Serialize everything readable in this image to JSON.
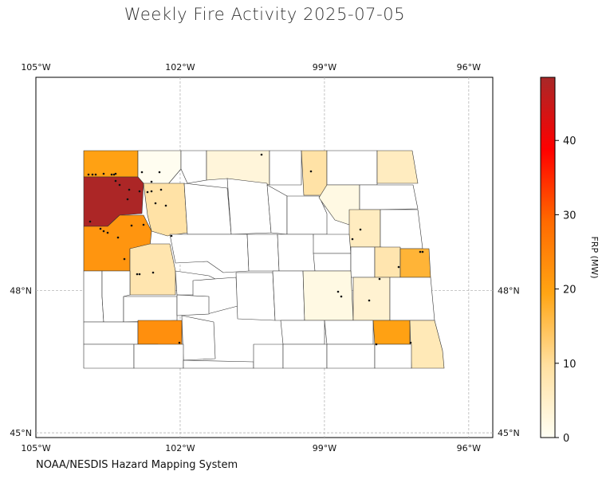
{
  "title": "Weekly Fire Activity 2025-07-05",
  "footer": "NOAA/NESDIS Hazard Mapping System",
  "map": {
    "lon_range": [
      -105,
      -95.5
    ],
    "lat_range": [
      44.9,
      52.5
    ],
    "lon_ticks": [
      {
        "value": -105,
        "label": "105°W"
      },
      {
        "value": -102,
        "label": "102°W"
      },
      {
        "value": -99,
        "label": "99°W"
      },
      {
        "value": -96,
        "label": "96°W"
      }
    ],
    "lat_ticks": [
      {
        "value": 48,
        "label": "48°N"
      },
      {
        "value": 45,
        "label": "45°N"
      }
    ]
  },
  "colorbar": {
    "label": "FRP (MW)",
    "min": 0,
    "max": 48.5,
    "ticks": [
      {
        "value": 0,
        "label": "0"
      },
      {
        "value": 10,
        "label": "10"
      },
      {
        "value": 20,
        "label": "20"
      },
      {
        "value": 30,
        "label": "30"
      },
      {
        "value": 40,
        "label": "40"
      }
    ],
    "colors": [
      "#fffff4",
      "#ffe0a0",
      "#ffa514",
      "#ff6a00",
      "#ff0000",
      "#a82828"
    ]
  },
  "counties": [
    {
      "frp": 20,
      "poly": [
        [
          105,
          189
        ],
        [
          173,
          189
        ],
        [
          173,
          222
        ],
        [
          105,
          222
        ]
      ]
    },
    {
      "frp": 0.5,
      "poly": [
        [
          173,
          189
        ],
        [
          227,
          189
        ],
        [
          227,
          212
        ],
        [
          210,
          232
        ],
        [
          173,
          230
        ]
      ]
    },
    {
      "frp": 0,
      "poly": [
        [
          227,
          189
        ],
        [
          259,
          189
        ],
        [
          259,
          226
        ],
        [
          235,
          230
        ],
        [
          227,
          212
        ]
      ]
    },
    {
      "frp": 3,
      "poly": [
        [
          259,
          189
        ],
        [
          338,
          189
        ],
        [
          338,
          232
        ],
        [
          285,
          224
        ],
        [
          259,
          226
        ]
      ]
    },
    {
      "frp": 0,
      "poly": [
        [
          338,
          189
        ],
        [
          378,
          189
        ],
        [
          378,
          232
        ],
        [
          338,
          232
        ]
      ]
    },
    {
      "frp": 9,
      "poly": [
        [
          378,
          189
        ],
        [
          410,
          189
        ],
        [
          410,
          245
        ],
        [
          381,
          245
        ]
      ]
    },
    {
      "frp": 0,
      "poly": [
        [
          410,
          189
        ],
        [
          473,
          189
        ],
        [
          473,
          232
        ],
        [
          410,
          232
        ]
      ]
    },
    {
      "frp": 6,
      "poly": [
        [
          473,
          189
        ],
        [
          517,
          189
        ],
        [
          524,
          230
        ],
        [
          473,
          230
        ]
      ]
    },
    {
      "frp": 48,
      "poly": [
        [
          105,
          222
        ],
        [
          173,
          222
        ],
        [
          180,
          230
        ],
        [
          178,
          268
        ],
        [
          150,
          270
        ],
        [
          135,
          284
        ],
        [
          105,
          284
        ]
      ]
    },
    {
      "frp": 9,
      "poly": [
        [
          180,
          230
        ],
        [
          231,
          230
        ],
        [
          235,
          292
        ],
        [
          210,
          296
        ],
        [
          190,
          290
        ],
        [
          185,
          270
        ]
      ]
    },
    {
      "frp": 0,
      "poly": [
        [
          231,
          230
        ],
        [
          285,
          236
        ],
        [
          290,
          294
        ],
        [
          235,
          294
        ]
      ]
    },
    {
      "frp": 0,
      "poly": [
        [
          285,
          224
        ],
        [
          335,
          230
        ],
        [
          340,
          292
        ],
        [
          290,
          294
        ]
      ]
    },
    {
      "frp": 0,
      "poly": [
        [
          335,
          232
        ],
        [
          360,
          246
        ],
        [
          360,
          294
        ],
        [
          340,
          292
        ]
      ]
    },
    {
      "frp": 0,
      "poly": [
        [
          360,
          246
        ],
        [
          400,
          246
        ],
        [
          410,
          268
        ],
        [
          410,
          294
        ],
        [
          360,
          294
        ]
      ]
    },
    {
      "frp": 2,
      "poly": [
        [
          410,
          232
        ],
        [
          451,
          232
        ],
        [
          451,
          263
        ],
        [
          438,
          282
        ],
        [
          420,
          276
        ],
        [
          400,
          248
        ]
      ]
    },
    {
      "frp": 0,
      "poly": [
        [
          451,
          232
        ],
        [
          518,
          232
        ],
        [
          524,
          262
        ],
        [
          477,
          263
        ],
        [
          451,
          263
        ]
      ]
    },
    {
      "frp": 6,
      "poly": [
        [
          438,
          263
        ],
        [
          477,
          263
        ],
        [
          477,
          310
        ],
        [
          438,
          310
        ]
      ]
    },
    {
      "frp": 0,
      "poly": [
        [
          477,
          263
        ],
        [
          524,
          263
        ],
        [
          530,
          312
        ],
        [
          502,
          312
        ],
        [
          477,
          310
        ]
      ]
    },
    {
      "frp": 22,
      "poly": [
        [
          105,
          284
        ],
        [
          135,
          284
        ],
        [
          150,
          270
        ],
        [
          180,
          270
        ],
        [
          190,
          290
        ],
        [
          188,
          310
        ],
        [
          163,
          312
        ],
        [
          163,
          340
        ],
        [
          105,
          340
        ]
      ]
    },
    {
      "frp": 8,
      "poly": [
        [
          188,
          306
        ],
        [
          213,
          306
        ],
        [
          220,
          340
        ],
        [
          220,
          370
        ],
        [
          163,
          370
        ],
        [
          163,
          312
        ]
      ]
    },
    {
      "frp": 0,
      "poly": [
        [
          213,
          294
        ],
        [
          310,
          294
        ],
        [
          312,
          340
        ],
        [
          280,
          342
        ],
        [
          260,
          328
        ],
        [
          220,
          330
        ]
      ]
    },
    {
      "frp": 0,
      "poly": [
        [
          310,
          294
        ],
        [
          348,
          294
        ],
        [
          350,
          340
        ],
        [
          312,
          340
        ]
      ]
    },
    {
      "frp": 0,
      "poly": [
        [
          348,
          294
        ],
        [
          393,
          294
        ],
        [
          395,
          340
        ],
        [
          350,
          340
        ]
      ]
    },
    {
      "frp": 0,
      "poly": [
        [
          393,
          294
        ],
        [
          438,
          294
        ],
        [
          440,
          318
        ],
        [
          393,
          318
        ]
      ]
    },
    {
      "frp": 0,
      "poly": [
        [
          393,
          318
        ],
        [
          440,
          318
        ],
        [
          440,
          340
        ],
        [
          395,
          340
        ]
      ]
    },
    {
      "frp": 0,
      "poly": [
        [
          440,
          310
        ],
        [
          470,
          310
        ],
        [
          470,
          348
        ],
        [
          440,
          348
        ]
      ]
    },
    {
      "frp": 8,
      "poly": [
        [
          470,
          310
        ],
        [
          502,
          310
        ],
        [
          502,
          348
        ],
        [
          470,
          348
        ]
      ]
    },
    {
      "frp": 17,
      "poly": [
        [
          502,
          312
        ],
        [
          538,
          312
        ],
        [
          540,
          348
        ],
        [
          502,
          348
        ]
      ]
    },
    {
      "frp": 0,
      "poly": [
        [
          105,
          340
        ],
        [
          128,
          340
        ],
        [
          128,
          372
        ],
        [
          130,
          404
        ],
        [
          105,
          404
        ]
      ]
    },
    {
      "frp": 0,
      "poly": [
        [
          128,
          340
        ],
        [
          163,
          340
        ],
        [
          163,
          370
        ],
        [
          155,
          372
        ],
        [
          155,
          404
        ],
        [
          130,
          404
        ],
        [
          128,
          372
        ]
      ]
    },
    {
      "frp": 0,
      "poly": [
        [
          220,
          340
        ],
        [
          262,
          346
        ],
        [
          270,
          350
        ],
        [
          262,
          370
        ],
        [
          222,
          370
        ]
      ]
    },
    {
      "frp": 0,
      "poly": [
        [
          242,
          352
        ],
        [
          296,
          348
        ],
        [
          298,
          384
        ],
        [
          260,
          394
        ],
        [
          242,
          380
        ]
      ]
    },
    {
      "frp": 0,
      "poly": [
        [
          296,
          342
        ],
        [
          342,
          342
        ],
        [
          345,
          402
        ],
        [
          298,
          400
        ]
      ]
    },
    {
      "frp": 0,
      "poly": [
        [
          342,
          340
        ],
        [
          380,
          340
        ],
        [
          382,
          402
        ],
        [
          345,
          402
        ]
      ]
    },
    {
      "frp": 2,
      "poly": [
        [
          380,
          340
        ],
        [
          440,
          340
        ],
        [
          443,
          402
        ],
        [
          382,
          402
        ]
      ]
    },
    {
      "frp": 4,
      "poly": [
        [
          443,
          348
        ],
        [
          489,
          348
        ],
        [
          489,
          402
        ],
        [
          443,
          402
        ]
      ]
    },
    {
      "frp": 0,
      "poly": [
        [
          489,
          348
        ],
        [
          540,
          348
        ],
        [
          545,
          402
        ],
        [
          489,
          402
        ]
      ]
    },
    {
      "frp": 0,
      "poly": [
        [
          155,
          372
        ],
        [
          222,
          372
        ],
        [
          222,
          402
        ],
        [
          155,
          404
        ]
      ]
    },
    {
      "frp": 0,
      "poly": [
        [
          222,
          370
        ],
        [
          262,
          372
        ],
        [
          262,
          394
        ],
        [
          222,
          396
        ]
      ]
    },
    {
      "frp": 0,
      "poly": [
        [
          105,
          404
        ],
        [
          173,
          404
        ],
        [
          173,
          432
        ],
        [
          105,
          432
        ]
      ]
    },
    {
      "frp": 23,
      "poly": [
        [
          173,
          402
        ],
        [
          228,
          402
        ],
        [
          228,
          438
        ],
        [
          200,
          438
        ],
        [
          198,
          432
        ],
        [
          173,
          432
        ]
      ]
    },
    {
      "frp": 0,
      "poly": [
        [
          228,
          396
        ],
        [
          268,
          404
        ],
        [
          270,
          450
        ],
        [
          230,
          452
        ]
      ]
    },
    {
      "frp": 0,
      "poly": [
        [
          352,
          402
        ],
        [
          407,
          402
        ],
        [
          407,
          432
        ],
        [
          355,
          432
        ]
      ]
    },
    {
      "frp": 0,
      "poly": [
        [
          407,
          402
        ],
        [
          468,
          402
        ],
        [
          468,
          432
        ],
        [
          410,
          432
        ]
      ]
    },
    {
      "frp": 20,
      "poly": [
        [
          468,
          402
        ],
        [
          514,
          402
        ],
        [
          514,
          432
        ],
        [
          470,
          432
        ]
      ]
    },
    {
      "frp": 7,
      "poly": [
        [
          514,
          402
        ],
        [
          545,
          402
        ],
        [
          555,
          440
        ],
        [
          557,
          462
        ],
        [
          516,
          462
        ]
      ]
    },
    {
      "frp": 0,
      "poly": [
        [
          105,
          432
        ],
        [
          168,
          432
        ],
        [
          168,
          462
        ],
        [
          105,
          462
        ]
      ]
    },
    {
      "frp": 0,
      "poly": [
        [
          168,
          432
        ],
        [
          230,
          432
        ],
        [
          230,
          462
        ],
        [
          168,
          462
        ]
      ]
    },
    {
      "frp": 0,
      "poly": [
        [
          230,
          452
        ],
        [
          318,
          454
        ],
        [
          318,
          462
        ],
        [
          230,
          462
        ]
      ]
    },
    {
      "frp": 0,
      "poly": [
        [
          318,
          432
        ],
        [
          355,
          432
        ],
        [
          355,
          462
        ],
        [
          318,
          462
        ]
      ]
    },
    {
      "frp": 0,
      "poly": [
        [
          355,
          432
        ],
        [
          410,
          432
        ],
        [
          410,
          462
        ],
        [
          355,
          462
        ]
      ]
    },
    {
      "frp": 0,
      "poly": [
        [
          410,
          432
        ],
        [
          470,
          432
        ],
        [
          470,
          462
        ],
        [
          410,
          462
        ]
      ]
    },
    {
      "frp": 0,
      "poly": [
        [
          470,
          432
        ],
        [
          516,
          432
        ],
        [
          516,
          462
        ],
        [
          470,
          462
        ]
      ]
    }
  ],
  "fires": [
    [
      111,
      219
    ],
    [
      116,
      219
    ],
    [
      120,
      219
    ],
    [
      130,
      218
    ],
    [
      140,
      219
    ],
    [
      143,
      219
    ],
    [
      145,
      218
    ],
    [
      178,
      216
    ],
    [
      200,
      216
    ],
    [
      190,
      228
    ],
    [
      175,
      240
    ],
    [
      162,
      238
    ],
    [
      185,
      241
    ],
    [
      190,
      240
    ],
    [
      202,
      238
    ],
    [
      145,
      227
    ],
    [
      150,
      232
    ],
    [
      160,
      250
    ],
    [
      113,
      278
    ],
    [
      130,
      290
    ],
    [
      135,
      292
    ],
    [
      126,
      287
    ],
    [
      148,
      298
    ],
    [
      165,
      283
    ],
    [
      180,
      282
    ],
    [
      208,
      258
    ],
    [
      195,
      255
    ],
    [
      156,
      325
    ],
    [
      172,
      344
    ],
    [
      175,
      344
    ],
    [
      192,
      342
    ],
    [
      215,
      296
    ],
    [
      328,
      194
    ],
    [
      390,
      215
    ],
    [
      452,
      288
    ],
    [
      442,
      300
    ],
    [
      500,
      335
    ],
    [
      527,
      316
    ],
    [
      530,
      316
    ],
    [
      476,
      350
    ],
    [
      424,
      366
    ],
    [
      428,
      372
    ],
    [
      463,
      377
    ],
    [
      472,
      432
    ],
    [
      515,
      430
    ],
    [
      225,
      430
    ]
  ]
}
